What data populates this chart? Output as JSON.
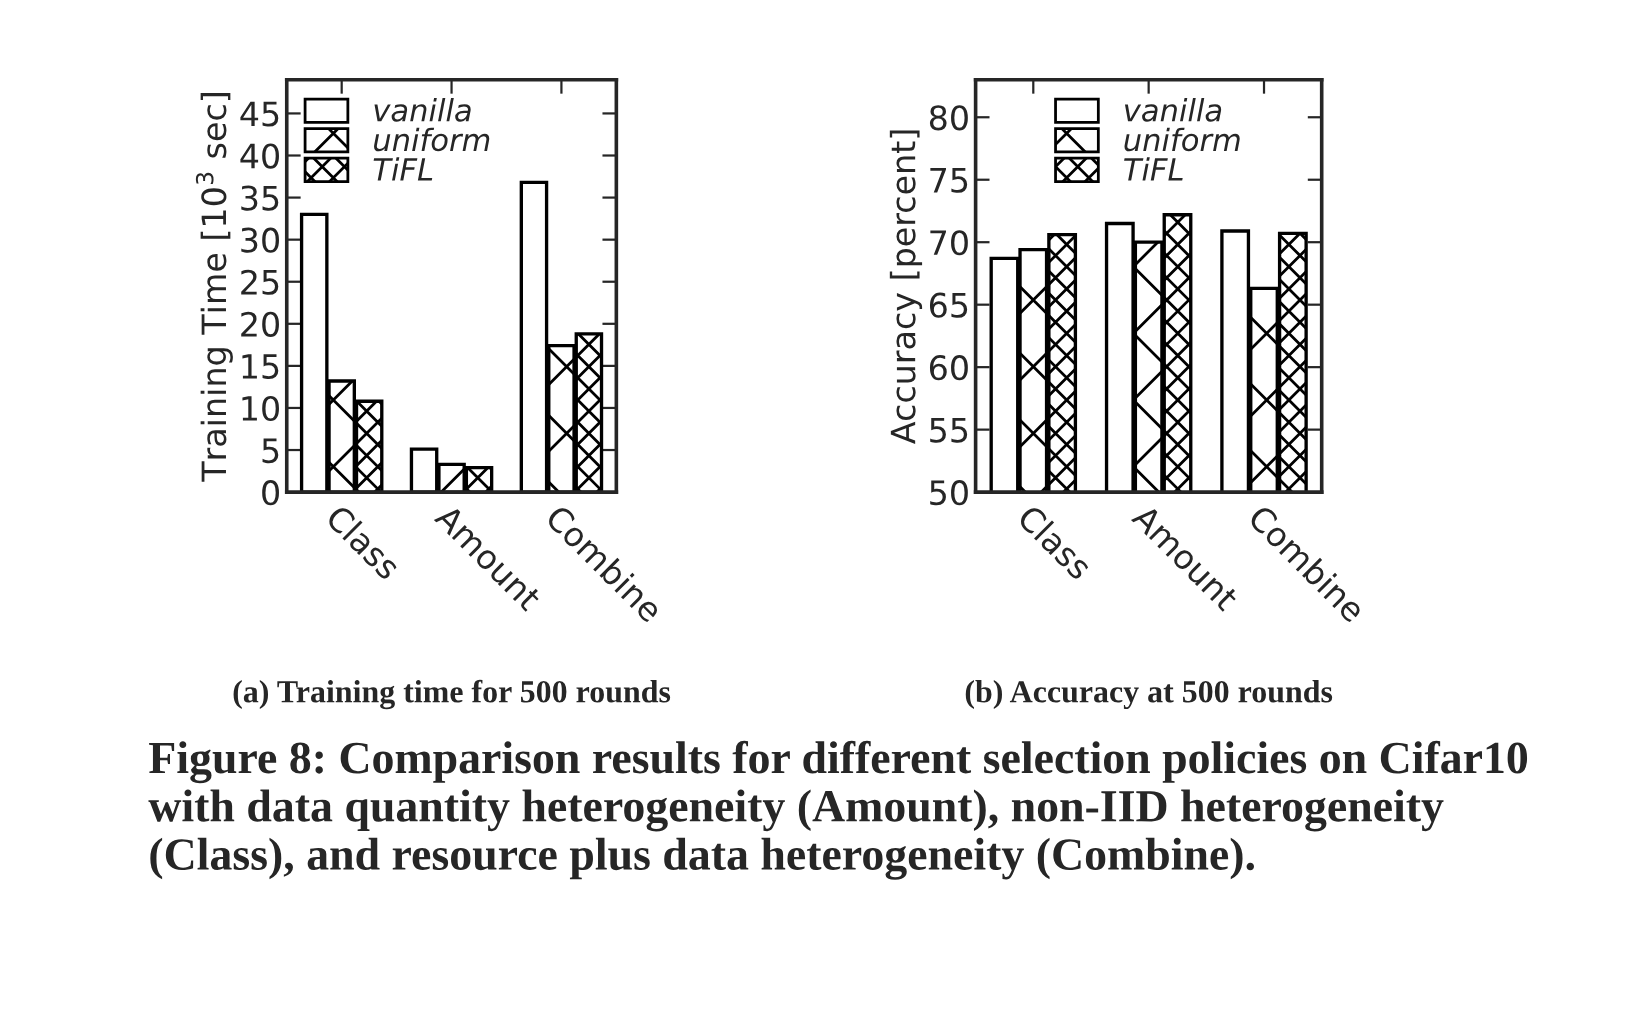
{
  "chart_data": [
    {
      "type": "bar",
      "title": "(a) Training time for 500 rounds",
      "ylabel": "Training Time [10$^{3}$ sec]",
      "categories": [
        "Class",
        "Amount",
        "Combine"
      ],
      "series": [
        {
          "name": "vanilla",
          "color": "#ffffff",
          "values": [
            33.0,
            5.1,
            36.8
          ]
        },
        {
          "name": "uniform",
          "color": "#000000",
          "values": [
            13.2,
            3.3,
            17.4
          ]
        },
        {
          "name": "TiFL",
          "color": "#000000",
          "values": [
            10.8,
            2.9,
            18.8
          ]
        }
      ],
      "ylim": [
        0,
        49
      ],
      "yticks": [
        0,
        5,
        10,
        15,
        20,
        25,
        30,
        35,
        40,
        45
      ],
      "grid": false,
      "legend": "top left",
      "annotations": [
        "Figure 8: Comparison results for different selection policies on Cifar10 with data quantity heterogeneity (Amount), non-IID heterogeneity (Class), and resource plus data heterogeneity (Combine)."
      ]
    },
    {
      "type": "bar",
      "title": "(b) Accuracy at 500 rounds",
      "ylabel": "Accuracy [percent]",
      "categories": [
        "Class",
        "Amount",
        "Combine"
      ],
      "series": [
        {
          "name": "vanilla",
          "color": "#ffffff",
          "values": [
            68.7,
            71.5,
            70.9
          ]
        },
        {
          "name": "uniform",
          "color": "#000000",
          "values": [
            69.4,
            70.0,
            66.3
          ]
        },
        {
          "name": "TiFL",
          "color": "#000000",
          "values": [
            70.6,
            72.2,
            70.7
          ]
        }
      ],
      "ylim": [
        50,
        83
      ],
      "yticks": [
        50,
        55,
        60,
        65,
        70,
        75,
        80
      ],
      "grid": false,
      "legend": "top"
    }
  ]
}
